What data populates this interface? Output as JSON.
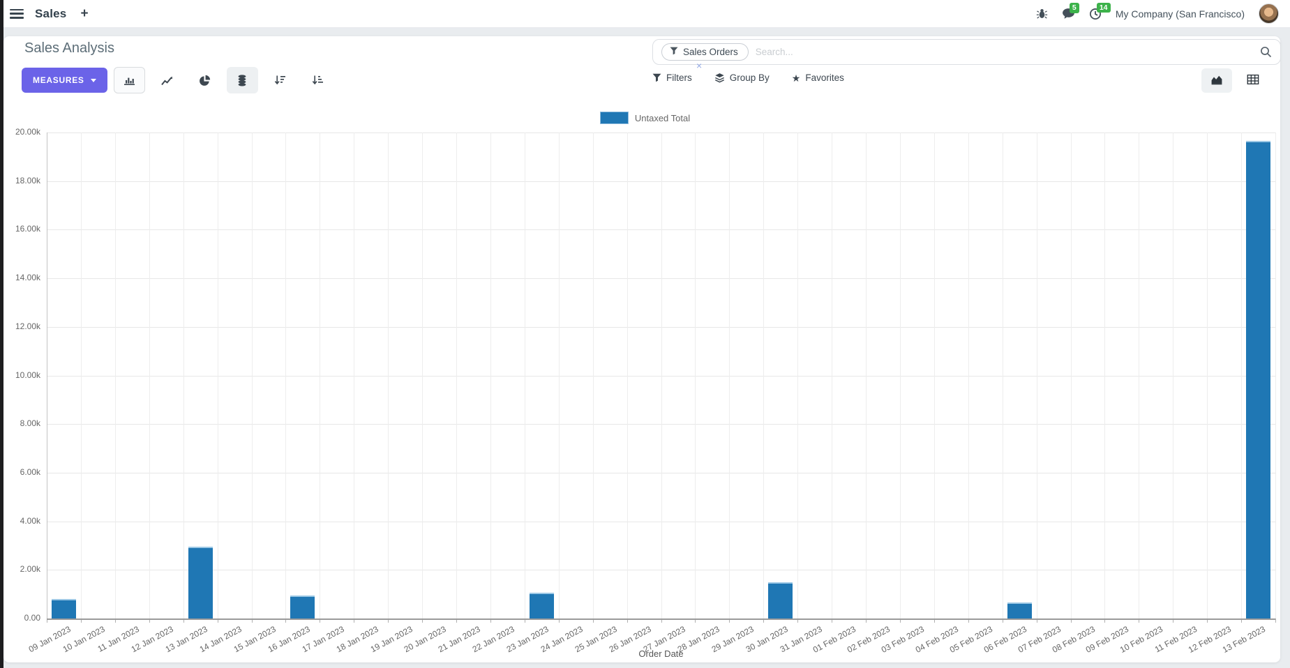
{
  "navbar": {
    "app_name": "Sales",
    "plus_label": "+",
    "message_count": "5",
    "activity_count": "14",
    "company": "My Company (San Francisco)"
  },
  "control_panel": {
    "title": "Sales Analysis",
    "measures_label": "MEASURES",
    "search_facet": "Sales Orders",
    "facet_remove": "×",
    "search_placeholder": "Search...",
    "filters_label": "Filters",
    "group_by_label": "Group By",
    "favorites_label": "Favorites"
  },
  "colors": {
    "accent": "#6b63e8",
    "bar": "#1f77b4",
    "badge_green": "#3cb24a"
  },
  "chart_data": {
    "type": "bar",
    "title": "",
    "legend": "Untaxed Total",
    "legend_position": "top",
    "xlabel": "Order Date",
    "ylabel": "",
    "grid": true,
    "ylim": [
      0,
      20000
    ],
    "ytick_step": 2000,
    "ytick_labels": [
      "0.00",
      "2.00k",
      "4.00k",
      "6.00k",
      "8.00k",
      "10.00k",
      "12.00k",
      "14.00k",
      "16.00k",
      "18.00k",
      "20.00k"
    ],
    "categories": [
      "09 Jan 2023",
      "10 Jan 2023",
      "11 Jan 2023",
      "12 Jan 2023",
      "13 Jan 2023",
      "14 Jan 2023",
      "15 Jan 2023",
      "16 Jan 2023",
      "17 Jan 2023",
      "18 Jan 2023",
      "19 Jan 2023",
      "20 Jan 2023",
      "21 Jan 2023",
      "22 Jan 2023",
      "23 Jan 2023",
      "24 Jan 2023",
      "25 Jan 2023",
      "26 Jan 2023",
      "27 Jan 2023",
      "28 Jan 2023",
      "29 Jan 2023",
      "30 Jan 2023",
      "31 Jan 2023",
      "01 Feb 2023",
      "02 Feb 2023",
      "03 Feb 2023",
      "04 Feb 2023",
      "05 Feb 2023",
      "06 Feb 2023",
      "07 Feb 2023",
      "08 Feb 2023",
      "09 Feb 2023",
      "10 Feb 2023",
      "11 Feb 2023",
      "12 Feb 2023",
      "13 Feb 2023"
    ],
    "series": [
      {
        "name": "Untaxed Total",
        "color": "#1f77b4",
        "values": [
          800,
          0,
          0,
          0,
          2950,
          0,
          0,
          950,
          0,
          0,
          0,
          0,
          0,
          0,
          1050,
          0,
          0,
          0,
          0,
          0,
          0,
          1500,
          0,
          0,
          0,
          0,
          0,
          0,
          650,
          0,
          0,
          0,
          0,
          0,
          0,
          19650
        ]
      }
    ]
  }
}
